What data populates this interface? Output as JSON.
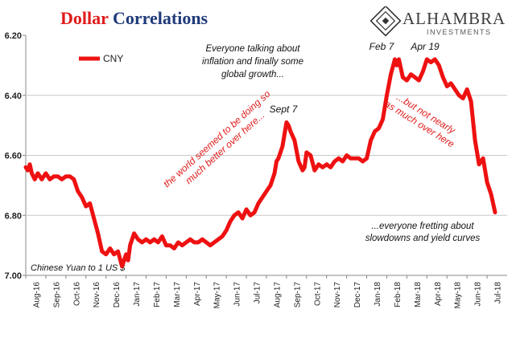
{
  "header": {
    "title_part1": "Dollar",
    "title_part2": "Correlations",
    "brand": "ALHAMBRA",
    "brand_sub": "INVESTMENTS"
  },
  "chart_data": {
    "type": "line",
    "title": "Dollar Correlations",
    "ylim": [
      6.2,
      7.0
    ],
    "y_inverted": true,
    "y_ticks": [
      "6.20",
      "6.40",
      "6.60",
      "6.80",
      "7.00"
    ],
    "x_ticks": [
      "Aug-16",
      "Sep-16",
      "Oct-16",
      "Nov-16",
      "Dec-16",
      "Jan-17",
      "Feb-17",
      "Mar-17",
      "Apr-17",
      "May-17",
      "Jun-17",
      "Jul-17",
      "Aug-17",
      "Sep-17",
      "Oct-17",
      "Nov-17",
      "Dec-17",
      "Jan-18",
      "Feb-18",
      "Mar-18",
      "Apr-18",
      "May-18",
      "Jun-18",
      "Jul-18"
    ],
    "grid": true,
    "legend": "top-left",
    "series": [
      {
        "name": "CNY",
        "color": "#ee1111",
        "points": [
          [
            0.0,
            6.64
          ],
          [
            0.1,
            6.65
          ],
          [
            0.2,
            6.63
          ],
          [
            0.3,
            6.66
          ],
          [
            0.45,
            6.68
          ],
          [
            0.6,
            6.66
          ],
          [
            0.8,
            6.68
          ],
          [
            1.0,
            6.66
          ],
          [
            1.2,
            6.68
          ],
          [
            1.4,
            6.67
          ],
          [
            1.6,
            6.67
          ],
          [
            1.8,
            6.68
          ],
          [
            2.0,
            6.67
          ],
          [
            2.2,
            6.67
          ],
          [
            2.4,
            6.68
          ],
          [
            2.6,
            6.72
          ],
          [
            2.8,
            6.74
          ],
          [
            3.0,
            6.77
          ],
          [
            3.2,
            6.76
          ],
          [
            3.4,
            6.81
          ],
          [
            3.6,
            6.86
          ],
          [
            3.8,
            6.92
          ],
          [
            4.0,
            6.93
          ],
          [
            4.2,
            6.91
          ],
          [
            4.4,
            6.93
          ],
          [
            4.6,
            6.92
          ],
          [
            4.8,
            6.97
          ],
          [
            5.0,
            6.93
          ],
          [
            5.1,
            6.95
          ],
          [
            5.2,
            6.9
          ],
          [
            5.4,
            6.86
          ],
          [
            5.6,
            6.88
          ],
          [
            5.8,
            6.89
          ],
          [
            6.0,
            6.88
          ],
          [
            6.2,
            6.89
          ],
          [
            6.4,
            6.88
          ],
          [
            6.6,
            6.89
          ],
          [
            6.8,
            6.87
          ],
          [
            7.0,
            6.9
          ],
          [
            7.2,
            6.9
          ],
          [
            7.4,
            6.91
          ],
          [
            7.6,
            6.89
          ],
          [
            7.8,
            6.9
          ],
          [
            8.0,
            6.89
          ],
          [
            8.2,
            6.88
          ],
          [
            8.4,
            6.89
          ],
          [
            8.6,
            6.89
          ],
          [
            8.8,
            6.88
          ],
          [
            9.0,
            6.89
          ],
          [
            9.2,
            6.9
          ],
          [
            9.4,
            6.89
          ],
          [
            9.6,
            6.88
          ],
          [
            9.8,
            6.87
          ],
          [
            10.0,
            6.85
          ],
          [
            10.2,
            6.82
          ],
          [
            10.4,
            6.8
          ],
          [
            10.6,
            6.79
          ],
          [
            10.8,
            6.81
          ],
          [
            11.0,
            6.78
          ],
          [
            11.2,
            6.8
          ],
          [
            11.4,
            6.79
          ],
          [
            11.6,
            6.76
          ],
          [
            11.8,
            6.74
          ],
          [
            12.0,
            6.72
          ],
          [
            12.2,
            6.7
          ],
          [
            12.3,
            6.68
          ],
          [
            12.4,
            6.66
          ],
          [
            12.5,
            6.62
          ],
          [
            12.6,
            6.61
          ],
          [
            12.8,
            6.57
          ],
          [
            12.9,
            6.53
          ],
          [
            13.0,
            6.49
          ],
          [
            13.1,
            6.5
          ],
          [
            13.2,
            6.52
          ],
          [
            13.4,
            6.55
          ],
          [
            13.6,
            6.62
          ],
          [
            13.8,
            6.65
          ],
          [
            13.9,
            6.64
          ],
          [
            14.0,
            6.59
          ],
          [
            14.2,
            6.6
          ],
          [
            14.4,
            6.65
          ],
          [
            14.6,
            6.63
          ],
          [
            14.8,
            6.64
          ],
          [
            15.0,
            6.63
          ],
          [
            15.2,
            6.64
          ],
          [
            15.4,
            6.62
          ],
          [
            15.6,
            6.61
          ],
          [
            15.8,
            6.62
          ],
          [
            16.0,
            6.6
          ],
          [
            16.2,
            6.61
          ],
          [
            16.4,
            6.61
          ],
          [
            16.6,
            6.61
          ],
          [
            16.8,
            6.62
          ],
          [
            17.0,
            6.61
          ],
          [
            17.2,
            6.55
          ],
          [
            17.4,
            6.52
          ],
          [
            17.6,
            6.51
          ],
          [
            17.8,
            6.48
          ],
          [
            18.0,
            6.4
          ],
          [
            18.2,
            6.33
          ],
          [
            18.4,
            6.28
          ],
          [
            18.5,
            6.3
          ],
          [
            18.6,
            6.28
          ],
          [
            18.8,
            6.34
          ],
          [
            19.0,
            6.35
          ],
          [
            19.2,
            6.33
          ],
          [
            19.4,
            6.34
          ],
          [
            19.6,
            6.35
          ],
          [
            19.8,
            6.32
          ],
          [
            20.0,
            6.28
          ],
          [
            20.2,
            6.29
          ],
          [
            20.4,
            6.28
          ],
          [
            20.6,
            6.3
          ],
          [
            20.8,
            6.34
          ],
          [
            21.0,
            6.37
          ],
          [
            21.2,
            6.36
          ],
          [
            21.4,
            6.38
          ],
          [
            21.6,
            6.4
          ],
          [
            21.8,
            6.41
          ],
          [
            22.0,
            6.38
          ],
          [
            22.2,
            6.42
          ],
          [
            22.4,
            6.55
          ],
          [
            22.6,
            6.63
          ],
          [
            22.8,
            6.61
          ],
          [
            23.0,
            6.69
          ],
          [
            23.2,
            6.73
          ],
          [
            23.4,
            6.79
          ]
        ]
      }
    ],
    "annotations": [
      {
        "text": "Everyone talking about\ninflation and finally some\nglobal growth..."
      },
      {
        "text": "Sept 7"
      },
      {
        "text": "Feb 7"
      },
      {
        "text": "Apr 19"
      },
      {
        "text": "the world seemed to be doing so\nmuch better over here..."
      },
      {
        "text": "...but not nearly\nas much over here"
      },
      {
        "text": "...everyone fretting about\nslowdowns and yield curves"
      },
      {
        "text": "Chinese Yuan to 1 US $"
      }
    ]
  }
}
